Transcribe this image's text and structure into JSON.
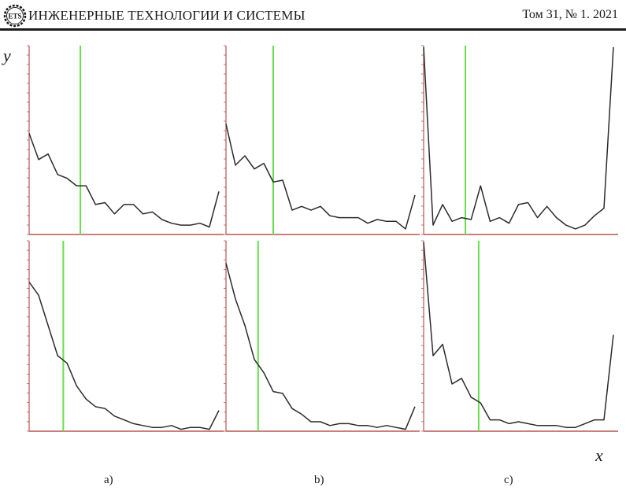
{
  "header": {
    "journal_title": "ИНЖЕНЕРНЫЕ ТЕХНОЛОГИИ И СИСТЕМЫ",
    "issue": "Том 31, № 1. 2021",
    "logo_text": "ETS"
  },
  "figure": {
    "y_label": "y",
    "x_label": "x",
    "captions": [
      "a)",
      "b)",
      "c)"
    ]
  },
  "colors": {
    "curve": "#2b2b2b",
    "marker": "#66e04a",
    "axis": "#b85555"
  },
  "chart_data": [
    {
      "type": "line",
      "panel": "a-top",
      "y": [
        0.54,
        0.4,
        0.43,
        0.32,
        0.3,
        0.26,
        0.26,
        0.16,
        0.17,
        0.11,
        0.16,
        0.16,
        0.11,
        0.12,
        0.08,
        0.06,
        0.05,
        0.05,
        0.06,
        0.04,
        0.23
      ],
      "marker_x": 0.27
    },
    {
      "type": "line",
      "panel": "b-top",
      "y": [
        0.59,
        0.37,
        0.42,
        0.35,
        0.38,
        0.28,
        0.29,
        0.13,
        0.15,
        0.13,
        0.15,
        0.1,
        0.09,
        0.09,
        0.09,
        0.06,
        0.08,
        0.07,
        0.07,
        0.03,
        0.21
      ],
      "marker_x": 0.25
    },
    {
      "type": "line",
      "panel": "c-top",
      "y": [
        1.0,
        0.05,
        0.16,
        0.07,
        0.09,
        0.08,
        0.26,
        0.07,
        0.09,
        0.06,
        0.16,
        0.17,
        0.09,
        0.15,
        0.09,
        0.05,
        0.03,
        0.05,
        0.1,
        0.14,
        1.0
      ],
      "marker_x": 0.22
    },
    {
      "type": "line",
      "panel": "a-bottom",
      "y": [
        0.79,
        0.72,
        0.56,
        0.4,
        0.36,
        0.24,
        0.17,
        0.13,
        0.12,
        0.08,
        0.06,
        0.04,
        0.03,
        0.02,
        0.02,
        0.03,
        0.01,
        0.02,
        0.02,
        0.01,
        0.11
      ],
      "marker_x": 0.18
    },
    {
      "type": "line",
      "panel": "b-bottom",
      "y": [
        0.89,
        0.7,
        0.56,
        0.38,
        0.31,
        0.21,
        0.2,
        0.12,
        0.09,
        0.05,
        0.05,
        0.03,
        0.04,
        0.04,
        0.03,
        0.03,
        0.02,
        0.03,
        0.02,
        0.01,
        0.13
      ],
      "marker_x": 0.17
    },
    {
      "type": "line",
      "panel": "c-bottom",
      "y": [
        1.0,
        0.4,
        0.46,
        0.25,
        0.28,
        0.18,
        0.15,
        0.06,
        0.06,
        0.04,
        0.05,
        0.04,
        0.03,
        0.03,
        0.03,
        0.02,
        0.02,
        0.04,
        0.06,
        0.06,
        0.51
      ],
      "marker_x": 0.29
    }
  ]
}
